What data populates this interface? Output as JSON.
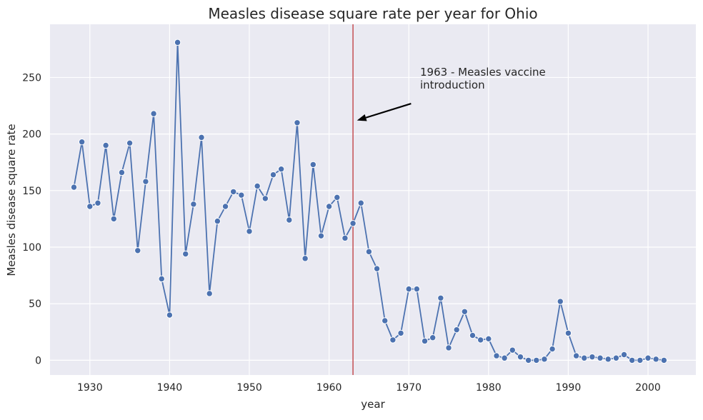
{
  "chart_data": {
    "type": "line",
    "title": "Measles disease square rate per year for Ohio",
    "xlabel": "year",
    "ylabel": "Measles disease square rate",
    "xlim": [
      1925,
      2006
    ],
    "ylim": [
      -13,
      297
    ],
    "xticks": [
      1930,
      1940,
      1950,
      1960,
      1970,
      1980,
      1990,
      2000
    ],
    "yticks": [
      0,
      50,
      100,
      150,
      200,
      250
    ],
    "grid": true,
    "vline": {
      "x": 1963,
      "color": "#c44e52"
    },
    "annotation": {
      "text_lines": [
        "1963 - Measles vaccine",
        "introduction"
      ],
      "text_at": [
        1971,
        249
      ],
      "arrow_tip": [
        1963.5,
        212
      ]
    },
    "series": [
      {
        "color": "#4c72b0",
        "x": [
          1928,
          1929,
          1930,
          1931,
          1932,
          1933,
          1934,
          1935,
          1936,
          1937,
          1938,
          1939,
          1940,
          1941,
          1942,
          1943,
          1944,
          1945,
          1946,
          1947,
          1948,
          1949,
          1950,
          1951,
          1952,
          1953,
          1954,
          1955,
          1956,
          1957,
          1958,
          1959,
          1960,
          1961,
          1962,
          1963,
          1964,
          1965,
          1966,
          1967,
          1968,
          1969,
          1970,
          1971,
          1972,
          1973,
          1974,
          1975,
          1976,
          1977,
          1978,
          1979,
          1980,
          1981,
          1982,
          1983,
          1984,
          1985,
          1986,
          1987,
          1988,
          1989,
          1990,
          1991,
          1992,
          1993,
          1994,
          1995,
          1996,
          1997,
          1998,
          1999,
          2000,
          2001,
          2002
        ],
        "values": [
          153,
          193,
          136,
          139,
          190,
          125,
          166,
          192,
          97,
          158,
          218,
          72,
          40,
          281,
          94,
          138,
          197,
          59,
          123,
          136,
          149,
          146,
          114,
          154,
          143,
          164,
          169,
          124,
          210,
          90,
          173,
          110,
          136,
          144,
          108,
          121,
          139,
          96,
          81,
          35,
          18,
          24,
          63,
          63,
          17,
          20,
          55,
          11,
          27,
          43,
          22,
          18,
          19,
          4,
          2,
          9,
          3,
          0,
          0,
          1,
          10,
          52,
          24,
          4,
          2,
          3,
          2,
          1,
          2,
          5,
          0,
          0,
          2,
          1,
          0
        ]
      }
    ]
  }
}
